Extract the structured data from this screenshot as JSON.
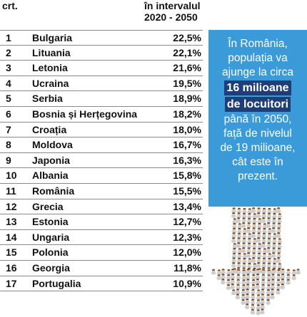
{
  "header": {
    "col_crt": "crt.",
    "col_interval_line1": "în intervalul",
    "col_interval_line2": "2020 - 2050"
  },
  "rows": [
    {
      "num": "1",
      "country": "Bulgaria",
      "pct": "22,5%"
    },
    {
      "num": "2",
      "country": "Lituania",
      "pct": "22,1%"
    },
    {
      "num": "3",
      "country": "Letonia",
      "pct": "21,6%"
    },
    {
      "num": "4",
      "country": "Ucraina",
      "pct": "19,5%"
    },
    {
      "num": "5",
      "country": "Serbia",
      "pct": "18,9%"
    },
    {
      "num": "6",
      "country": "Bosnia și Herțegovina",
      "pct": "18,2%"
    },
    {
      "num": "7",
      "country": "Croația",
      "pct": "18,0%"
    },
    {
      "num": "8",
      "country": "Moldova",
      "pct": "16,7%"
    },
    {
      "num": "9",
      "country": "Japonia",
      "pct": "16,3%"
    },
    {
      "num": "10",
      "country": "Albania",
      "pct": "15,8%"
    },
    {
      "num": "11",
      "country": "România",
      "pct": "15,5%"
    },
    {
      "num": "12",
      "country": "Grecia",
      "pct": "13,4%"
    },
    {
      "num": "13",
      "country": "Estonia",
      "pct": "12,7%"
    },
    {
      "num": "14",
      "country": "Ungaria",
      "pct": "12,3%"
    },
    {
      "num": "15",
      "country": "Polonia",
      "pct": "12,0%"
    },
    {
      "num": "16",
      "country": "Georgia",
      "pct": "11,8%"
    },
    {
      "num": "17",
      "country": "Portugalia",
      "pct": "10,9%"
    }
  ],
  "info_box": {
    "line1": "În România,",
    "line2": "populația va",
    "line3": "ajunge la circa",
    "highlight1": "16 milioane",
    "highlight2": "de locuitori",
    "line4": "până în 2050,",
    "line5": "față de nivelul",
    "line6": "de 19 milioane,",
    "line7": "cât este în",
    "line8": "prezent."
  },
  "colors": {
    "box_bg": "#3b9bd8",
    "highlight_bg": "#1d3e78",
    "row_border": "#8a8a8a"
  },
  "illustration": "crowd-arrow-down-icon"
}
